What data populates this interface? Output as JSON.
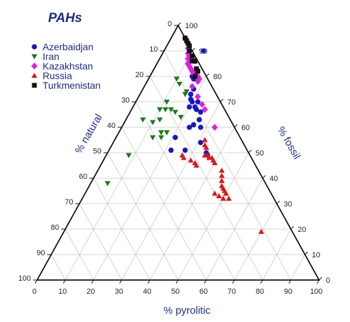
{
  "chart_data": {
    "type": "scatter",
    "subtype": "ternary",
    "title": "PAHs",
    "axes": {
      "bottom": {
        "label": "% pyrolitic",
        "ticks": [
          "0",
          "10",
          "20",
          "30",
          "40",
          "50",
          "60",
          "70",
          "80",
          "90",
          "100"
        ]
      },
      "left": {
        "label": "% natural",
        "ticks": [
          "0",
          "10",
          "20",
          "30",
          "40",
          "50",
          "60",
          "70",
          "80",
          "90",
          "100"
        ]
      },
      "right": {
        "label": "% fossil",
        "ticks": [
          "0",
          "10",
          "20",
          "30",
          "40",
          "50",
          "60",
          "70",
          "80",
          "90",
          "100"
        ]
      }
    },
    "grid": true,
    "grid_step": 10,
    "legend": {
      "placement": "top-left"
    },
    "point_fields": [
      "pyrolitic",
      "fossil"
    ],
    "series": [
      {
        "name": "Azerbaidjan",
        "marker": "circle",
        "color": "#1515c8",
        "points": [
          [
            15,
            81
          ],
          [
            15,
            80
          ],
          [
            16,
            79
          ],
          [
            18,
            75
          ],
          [
            18,
            73
          ],
          [
            19,
            71
          ],
          [
            20,
            70
          ],
          [
            22,
            70
          ],
          [
            22,
            68
          ],
          [
            20,
            68
          ],
          [
            23,
            67
          ],
          [
            25,
            66
          ],
          [
            26,
            63
          ],
          [
            25,
            61
          ],
          [
            28,
            60
          ],
          [
            24,
            60
          ],
          [
            31,
            54
          ],
          [
            35,
            50
          ],
          [
            36,
            49
          ],
          [
            21,
            56
          ],
          [
            22,
            51
          ],
          [
            27,
            51
          ],
          [
            14,
            90
          ]
        ]
      },
      {
        "name": "Iran",
        "marker": "triangle-down",
        "color": "#1a7a1a",
        "points": [
          [
            12,
            77
          ],
          [
            11,
            70
          ],
          [
            10,
            67
          ],
          [
            12,
            67
          ],
          [
            14,
            67
          ],
          [
            16,
            66
          ],
          [
            12,
            63
          ],
          [
            15,
            58
          ],
          [
            17,
            58
          ],
          [
            16,
            73
          ],
          [
            16,
            74
          ],
          [
            19,
            64
          ],
          [
            10,
            62
          ],
          [
            13,
            56
          ],
          [
            16,
            56
          ],
          [
            6,
            63
          ],
          [
            10,
            79
          ],
          [
            8,
            49
          ],
          [
            6,
            38
          ]
        ]
      },
      {
        "name": "Kazakhstan",
        "marker": "diamond",
        "color": "#e020e0",
        "points": [
          [
            5,
            95
          ],
          [
            7,
            93
          ],
          [
            8,
            91
          ],
          [
            9,
            89
          ],
          [
            10,
            88
          ],
          [
            10,
            87
          ],
          [
            11,
            86
          ],
          [
            11,
            85
          ],
          [
            12,
            84
          ],
          [
            13,
            83
          ],
          [
            14,
            82
          ],
          [
            15,
            81
          ],
          [
            17,
            80
          ],
          [
            18,
            79
          ],
          [
            18,
            78
          ],
          [
            17,
            76
          ],
          [
            21,
            72
          ],
          [
            24,
            69
          ],
          [
            26,
            67
          ],
          [
            33,
            60
          ],
          [
            13,
            86
          ]
        ]
      },
      {
        "name": "Russia",
        "marker": "triangle-up",
        "color": "#dd1515",
        "points": [
          [
            32,
            55
          ],
          [
            34,
            52
          ],
          [
            33,
            53
          ],
          [
            36,
            49
          ],
          [
            37,
            48
          ],
          [
            38,
            48
          ],
          [
            35,
            49
          ],
          [
            27,
            49
          ],
          [
            28,
            48
          ],
          [
            31,
            47
          ],
          [
            33,
            46
          ],
          [
            34,
            45
          ],
          [
            39,
            47
          ],
          [
            40,
            46
          ],
          [
            45,
            41
          ],
          [
            46,
            39
          ],
          [
            47,
            37
          ],
          [
            48,
            36
          ],
          [
            49,
            35
          ],
          [
            50,
            34
          ],
          [
            50,
            32
          ],
          [
            52,
            32
          ],
          [
            70,
            19
          ],
          [
            46,
            34
          ],
          [
            48,
            33
          ],
          [
            44,
            43
          ]
        ]
      },
      {
        "name": "Turkmenistan",
        "marker": "square",
        "color": "#111111",
        "points": [
          [
            5,
            95
          ],
          [
            6,
            94
          ],
          [
            7,
            93
          ],
          [
            8,
            92
          ],
          [
            9,
            90
          ],
          [
            11,
            88
          ],
          [
            13,
            86
          ],
          [
            12,
            86
          ],
          [
            15,
            83
          ],
          [
            16,
            82
          ],
          [
            16,
            80
          ]
        ]
      }
    ]
  }
}
